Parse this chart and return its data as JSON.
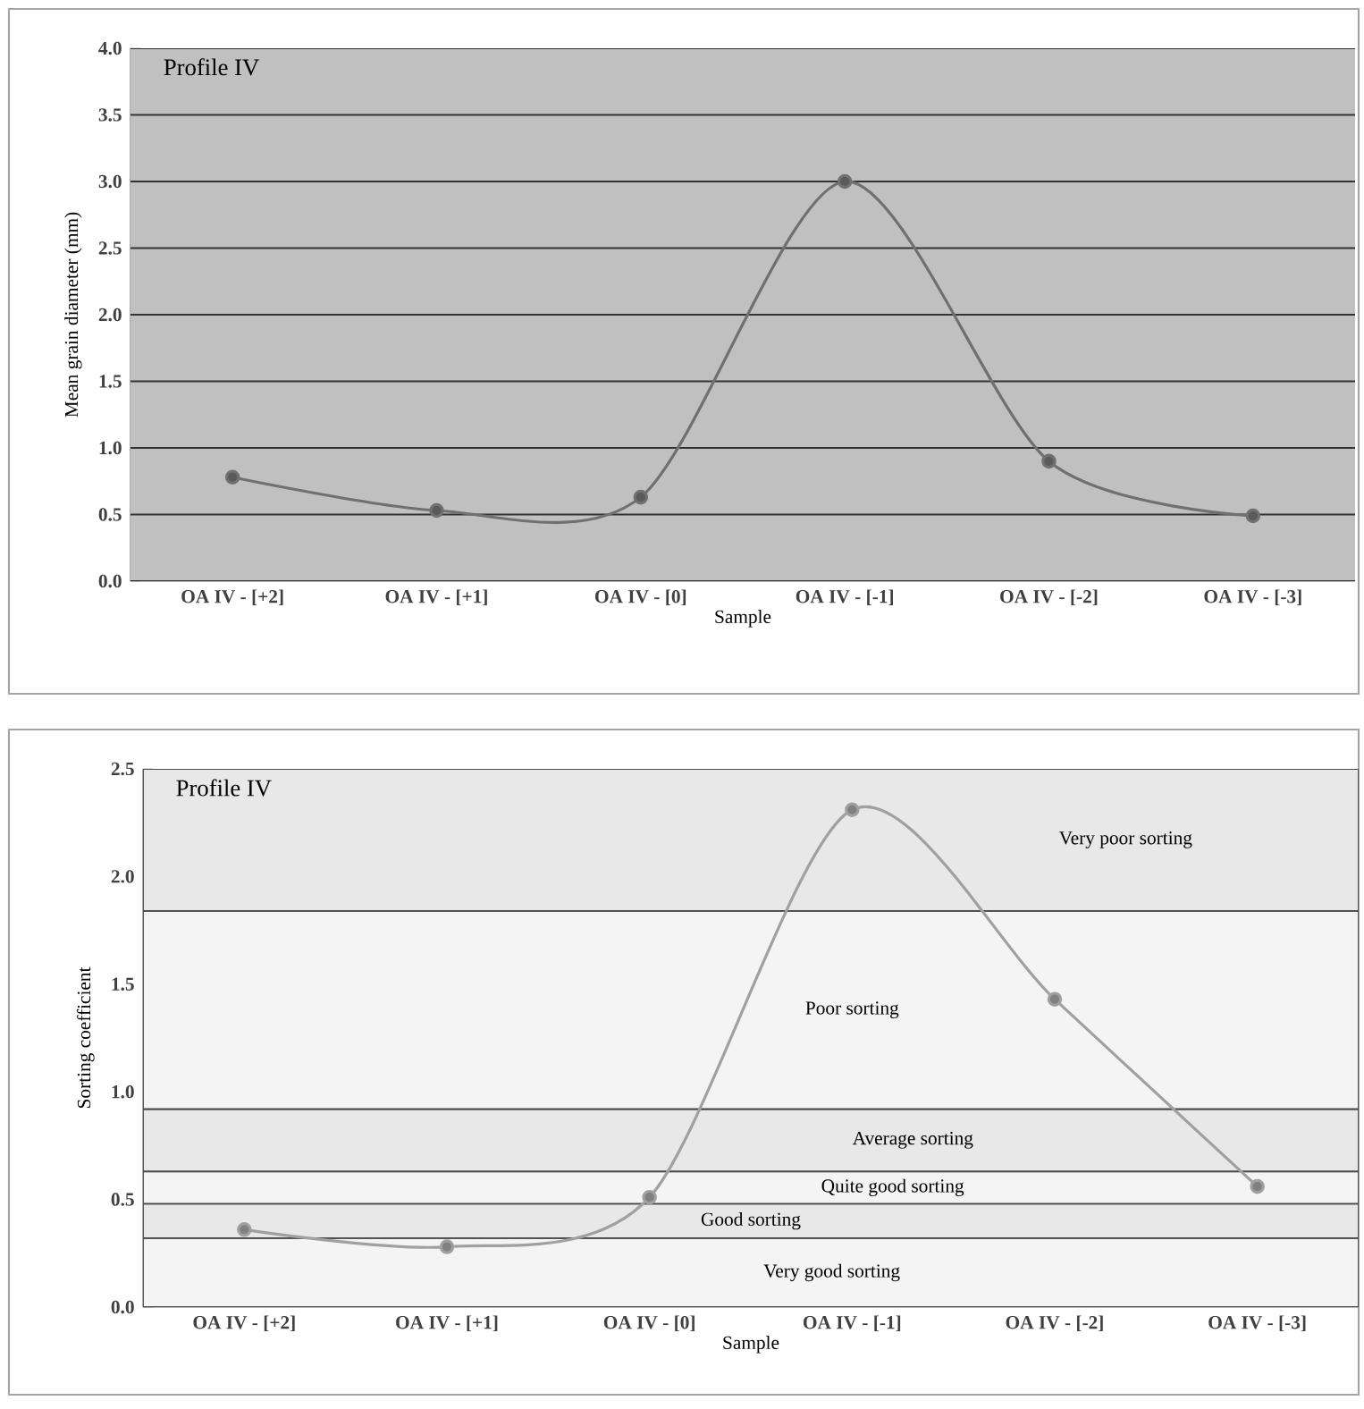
{
  "chart_data": [
    {
      "type": "line",
      "title": "Profile IV",
      "xlabel": "Sample",
      "ylabel": "Mean grain diameter (mm)",
      "categories": [
        "OA IV - [+2]",
        "OA IV - [+1]",
        "OA IV - [0]",
        "OA IV - [-1]",
        "OA IV - [-2]",
        "OA IV - [-3]"
      ],
      "values": [
        0.78,
        0.53,
        0.63,
        3.0,
        0.9,
        0.49
      ],
      "color": "#707070",
      "marker": "circle",
      "ylim": [
        0,
        4
      ],
      "yticks": [
        {
          "value": 0,
          "label": "0.0"
        },
        0.5,
        {
          "value": 1,
          "label": "1.0"
        },
        1.5,
        {
          "value": 2,
          "label": "2.0"
        },
        2.5,
        {
          "value": 3,
          "label": "3.0"
        },
        3.5,
        {
          "value": 4,
          "label": "4.0"
        }
      ],
      "grid": "y"
    },
    {
      "type": "line",
      "title": "Profile IV",
      "xlabel": "Sample",
      "ylabel": "Sorting coefficient",
      "categories": [
        "OA IV - [+2]",
        "OA IV - [+1]",
        "OA IV - [0]",
        "OA IV - [-1]",
        "OA IV - [-2]",
        "OA IV - [-3]"
      ],
      "values": [
        0.36,
        0.28,
        0.51,
        2.31,
        1.43,
        0.56
      ],
      "color": "#a0a0a0",
      "marker": "circle",
      "ylim": [
        0,
        2.5
      ],
      "yticks": [
        {
          "value": 0,
          "label": "0.0"
        },
        0.5,
        {
          "value": 1,
          "label": "1.0"
        },
        1.5,
        {
          "value": 2,
          "label": "2.0"
        },
        2.5
      ],
      "bands": [
        {
          "axis": "y",
          "from": 0,
          "to": 0.32,
          "label": "Very good sorting",
          "color": "#f4f4f4"
        },
        {
          "axis": "y",
          "from": 0.32,
          "to": 0.48,
          "label": "Good sorting",
          "color": "#e8e8e8"
        },
        {
          "axis": "y",
          "from": 0.48,
          "to": 0.63,
          "label": "Quite good sorting",
          "color": "#f4f4f4"
        },
        {
          "axis": "y",
          "from": 0.63,
          "to": 0.92,
          "label": "Average sorting",
          "color": "#e8e8e8"
        },
        {
          "axis": "y",
          "from": 0.92,
          "to": 1.84,
          "label": "Poor sorting",
          "color": "#f4f4f4"
        },
        {
          "axis": "y",
          "from": 1.84,
          "to": 2.5,
          "label": "Very poor sorting",
          "color": "#e8e8e8"
        }
      ]
    }
  ]
}
